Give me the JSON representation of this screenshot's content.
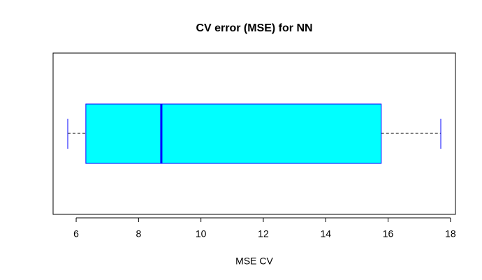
{
  "chart_data": {
    "type": "box",
    "title": "CV error (MSE) for NN",
    "xlabel": "MSE CV",
    "min": 5.73,
    "q1": 6.31,
    "median": 8.73,
    "q3": 15.78,
    "max": 17.69,
    "color": "#00ffff",
    "border_color": "#0000ff",
    "xlim": [
      5.26,
      18.16
    ],
    "xticks": [
      6,
      8,
      10,
      12,
      14,
      16,
      18
    ]
  }
}
